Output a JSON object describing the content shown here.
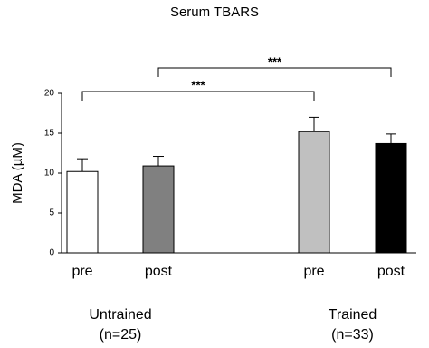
{
  "chart_data": {
    "type": "bar",
    "title": "Serum TBARS",
    "y_label": "MDA (µM)",
    "categories": [
      "pre",
      "post",
      "pre",
      "post"
    ],
    "values": [
      10.2,
      10.9,
      15.2,
      13.7
    ],
    "errors": [
      1.6,
      1.2,
      1.8,
      1.2
    ],
    "colors": [
      "#ffffff",
      "#808080",
      "#c0c0c0",
      "#000000"
    ],
    "groups": [
      {
        "label": "Untrained",
        "n": "(n=25)",
        "bars": [
          0,
          1
        ]
      },
      {
        "label": "Trained",
        "n": "(n=33)",
        "bars": [
          2,
          3
        ]
      }
    ],
    "annotations": [
      {
        "text": "***",
        "from": 0,
        "to": 2
      },
      {
        "text": "***",
        "from": 1,
        "to": 3
      }
    ],
    "ylim": [
      0,
      20
    ],
    "yticks": [
      0,
      5,
      10,
      15,
      20
    ]
  }
}
